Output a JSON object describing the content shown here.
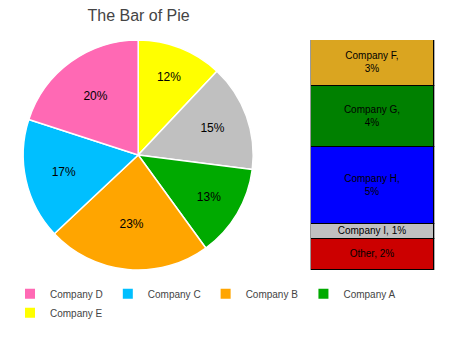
{
  "chart_data": [
    {
      "type": "pie",
      "title": "The Bar of Pie",
      "categories": [
        "Company E",
        null,
        "Company A",
        "Company B",
        "Company C",
        "Company D"
      ],
      "values": [
        12,
        15,
        13,
        23,
        17,
        20
      ],
      "value_labels": [
        "12%",
        "15%",
        "13%",
        "23%",
        "17%",
        "20%"
      ],
      "colors": [
        "#FFFF00",
        "#C0C0C0",
        "#00AA00",
        "#FFA500",
        "#00BFFF",
        "#FF69B4"
      ],
      "data_labels": true,
      "legend": "lower left"
    },
    {
      "type": "bar",
      "stacked": true,
      "categories": [
        null
      ],
      "series": [
        {
          "color": "#DAA520",
          "values": [
            3
          ],
          "value_labels": [
            "Company F,\n3%"
          ]
        },
        {
          "color": "#008000",
          "values": [
            4
          ],
          "value_labels": [
            "Company G,\n4%"
          ]
        },
        {
          "color": "#0000FF",
          "values": [
            5
          ],
          "value_labels": [
            "Company H,\n5%"
          ]
        },
        {
          "color": "#C0C0C0",
          "values": [
            1
          ],
          "value_labels": [
            "Company I, 1%"
          ]
        },
        {
          "color": "#CC0000",
          "values": [
            2
          ],
          "value_labels": [
            "Other, 2%"
          ]
        }
      ],
      "ylim": [
        0,
        15
      ],
      "data_labels": true,
      "grid": false,
      "tick_labels": false
    }
  ]
}
